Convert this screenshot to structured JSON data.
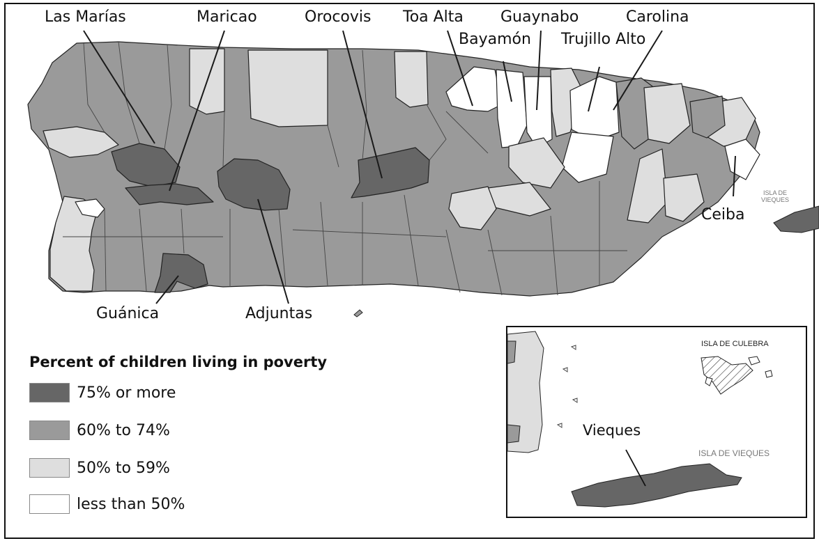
{
  "colors": {
    "very_high": "#666666",
    "high": "#9a9a9a",
    "mid": "#dedede",
    "low": "#ffffff",
    "outline": "#222222"
  },
  "labels": {
    "las_marias": "Las Marías",
    "maricao": "Maricao",
    "orocovis": "Orocovis",
    "toa_alta": "Toa Alta",
    "guaynabo": "Guaynabo",
    "carolina": "Carolina",
    "bayamon": "Bayamón",
    "trujillo_alto": "Trujillo Alto",
    "ceiba": "Ceiba",
    "guanica": "Guánica",
    "adjuntas": "Adjuntas",
    "vieques": "Vieques"
  },
  "offshore": {
    "main_vieques": "ISLA DE\nVIEQUES",
    "main_vieques_line1": "ISLA DE",
    "main_vieques_line2": "VIEQUES",
    "inset_culebra": "ISLA DE CULEBRA",
    "inset_vieques": "ISLA DE VIEQUES"
  },
  "legend": {
    "title": "Percent of children living in poverty",
    "items": [
      {
        "label": "75% or more",
        "color": "#666666"
      },
      {
        "label": "60% to 74%",
        "color": "#9a9a9a"
      },
      {
        "label": "50% to 59%",
        "color": "#dedede"
      },
      {
        "label": "less than 50%",
        "color": "#ffffff"
      }
    ]
  }
}
